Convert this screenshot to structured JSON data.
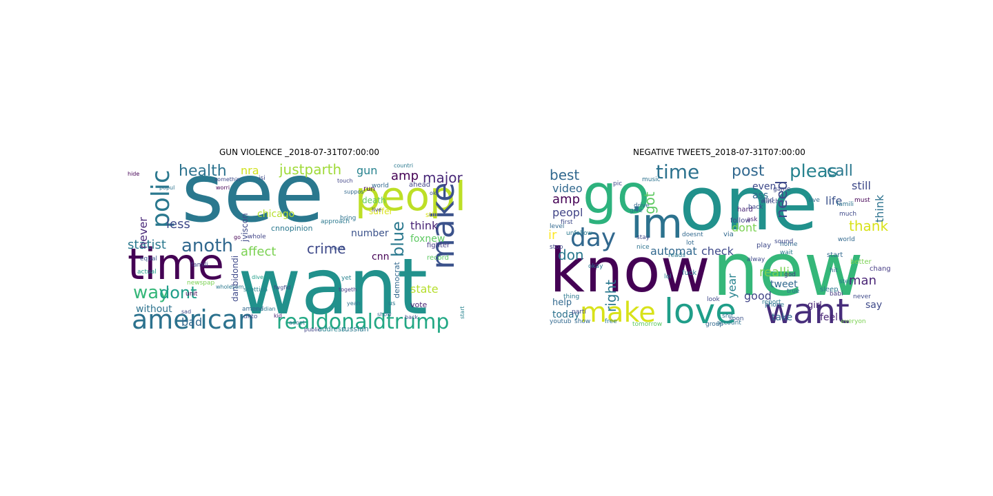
{
  "panels": [
    {
      "title": "GUN VIOLENCE _2018-07-31T07:00:00",
      "words": [
        {
          "text": "see",
          "color": "#2a788e"
        },
        {
          "text": "want",
          "color": "#21918c"
        },
        {
          "text": "peopl",
          "color": "#bddf26"
        },
        {
          "text": "time",
          "color": "#440154"
        },
        {
          "text": "american",
          "color": "#2c728e"
        },
        {
          "text": "realdonaldtrump",
          "color": "#22a884"
        },
        {
          "text": "make",
          "color": "#3b528b"
        },
        {
          "text": "polic",
          "color": "#2a788e"
        },
        {
          "text": "anoth",
          "color": "#31688e"
        },
        {
          "text": "health",
          "color": "#2c728e"
        },
        {
          "text": "justparth",
          "color": "#a0da39"
        },
        {
          "text": "major",
          "color": "#482878"
        },
        {
          "text": "blue",
          "color": "#2a788e"
        },
        {
          "text": "way",
          "color": "#35b779"
        },
        {
          "text": "dont",
          "color": "#1f9e89"
        },
        {
          "text": "crime",
          "color": "#3e4989"
        },
        {
          "text": "amp",
          "color": "#440154"
        },
        {
          "text": "nra",
          "color": "#d0e11c"
        },
        {
          "text": "gun",
          "color": "#26828e"
        },
        {
          "text": "think",
          "color": "#482475"
        },
        {
          "text": "statist",
          "color": "#2a788e"
        },
        {
          "text": "affect",
          "color": "#7ad151"
        },
        {
          "text": "less",
          "color": "#3e4989"
        },
        {
          "text": "never",
          "color": "#482878"
        },
        {
          "text": "state",
          "color": "#b5de2b"
        },
        {
          "text": "chicago",
          "color": "#b5de2b"
        },
        {
          "text": "foxnew",
          "color": "#5ec962"
        },
        {
          "text": "bad",
          "color": "#31688e"
        },
        {
          "text": "cnn",
          "color": "#440154"
        },
        {
          "text": "number",
          "color": "#3b528b"
        },
        {
          "text": "without",
          "color": "#2c728e"
        },
        {
          "text": "danbidondi",
          "color": "#3e4989"
        },
        {
          "text": "jviscon",
          "color": "#3e4989"
        },
        {
          "text": "cnnopinion",
          "color": "#2a788e"
        },
        {
          "text": "death",
          "color": "#5ec962"
        },
        {
          "text": "suffer",
          "color": "#d8e219"
        },
        {
          "text": "democrat",
          "color": "#31688e"
        },
        {
          "text": "vote",
          "color": "#482475"
        },
        {
          "text": "russian",
          "color": "#2a788e"
        },
        {
          "text": "address",
          "color": "#26828e"
        },
        {
          "text": "still",
          "color": "#d8e219"
        },
        {
          "text": "fighter",
          "color": "#443a83"
        },
        {
          "text": "run",
          "color": "#440154"
        },
        {
          "text": "record",
          "color": "#5ec962"
        },
        {
          "text": "world",
          "color": "#31688e"
        },
        {
          "text": "ahead",
          "color": "#414487"
        },
        {
          "text": "bring",
          "color": "#2c728e"
        },
        {
          "text": "approach",
          "color": "#2a788e"
        },
        {
          "text": "unit",
          "color": "#440154"
        },
        {
          "text": "scottish",
          "color": "#26828e"
        },
        {
          "text": "newspap",
          "color": "#7ad151"
        },
        {
          "text": "amend",
          "color": "#31688e"
        },
        {
          "text": "unto",
          "color": "#3e4989"
        },
        {
          "text": "whole",
          "color": "#414487"
        },
        {
          "text": "famili",
          "color": "#414487"
        },
        {
          "text": "equal",
          "color": "#3b528b"
        },
        {
          "text": "hide",
          "color": "#440154"
        },
        {
          "text": "actual",
          "color": "#1f9e89"
        },
        {
          "text": "touch",
          "color": "#414487"
        },
        {
          "text": "countri",
          "color": "#2a788e"
        },
        {
          "text": "suppos",
          "color": "#31688e"
        },
        {
          "text": "isi",
          "color": "#3e4989"
        },
        {
          "text": "read",
          "color": "#3b528b"
        },
        {
          "text": "us",
          "color": "#2a788e"
        },
        {
          "text": "yet",
          "color": "#26828e"
        },
        {
          "text": "togeth",
          "color": "#443a83"
        },
        {
          "text": "yeah",
          "color": "#2c728e"
        },
        {
          "text": "show",
          "color": "#31688e"
        },
        {
          "text": "back",
          "color": "#3e4989"
        },
        {
          "text": "start",
          "color": "#26828e"
        },
        {
          "text": "kid",
          "color": "#482475"
        },
        {
          "text": "public",
          "color": "#414487"
        },
        {
          "text": "adopt",
          "color": "#2c728e"
        },
        {
          "text": "sad",
          "color": "#3e4989"
        },
        {
          "text": "worri",
          "color": "#440154"
        },
        {
          "text": "canadian",
          "color": "#2a788e"
        },
        {
          "text": "diverti",
          "color": "#1f9e89"
        },
        {
          "text": "wholesom",
          "color": "#2a788e"
        },
        {
          "text": "fwgfid",
          "color": "#3e4989"
        },
        {
          "text": "go",
          "color": "#440154"
        },
        {
          "text": "ok",
          "color": "#3b528b"
        },
        {
          "text": "live",
          "color": "#443a83"
        },
        {
          "text": "somethin",
          "color": "#3e4989"
        },
        {
          "text": "popul",
          "color": "#2c728e"
        },
        {
          "text": "list",
          "color": "#3b528b"
        }
      ]
    },
    {
      "title": "NEGATIVE TWEETS_2018-07-31T07:00:00",
      "words": [
        {
          "text": "one",
          "color": "#21918c"
        },
        {
          "text": "new",
          "color": "#35b779"
        },
        {
          "text": "know",
          "color": "#440154"
        },
        {
          "text": "go",
          "color": "#2db27d"
        },
        {
          "text": "im",
          "color": "#2c728e"
        },
        {
          "text": "want",
          "color": "#472d7b"
        },
        {
          "text": "love",
          "color": "#1f9e89"
        },
        {
          "text": "make",
          "color": "#d8e219"
        },
        {
          "text": "day",
          "color": "#31688e"
        },
        {
          "text": "time",
          "color": "#2c728e"
        },
        {
          "text": "pleas",
          "color": "#26828e"
        },
        {
          "text": "post",
          "color": "#31688e"
        },
        {
          "text": "call",
          "color": "#2a788e"
        },
        {
          "text": "got",
          "color": "#5ec962"
        },
        {
          "text": "best",
          "color": "#31688e"
        },
        {
          "text": "amp",
          "color": "#440154"
        },
        {
          "text": "need",
          "color": "#3e4989"
        },
        {
          "text": "thank",
          "color": "#d8e219"
        },
        {
          "text": "don",
          "color": "#2a788e"
        },
        {
          "text": "right",
          "color": "#2a788e"
        },
        {
          "text": "video",
          "color": "#31688e"
        },
        {
          "text": "peopl",
          "color": "#414487"
        },
        {
          "text": "ir",
          "color": "#fde725"
        },
        {
          "text": "automat",
          "color": "#31688e"
        },
        {
          "text": "check",
          "color": "#3e4989"
        },
        {
          "text": "realli",
          "color": "#7ad151"
        },
        {
          "text": "tweet",
          "color": "#31688e"
        },
        {
          "text": "man",
          "color": "#482475"
        },
        {
          "text": "think",
          "color": "#2c728e"
        },
        {
          "text": "still",
          "color": "#3e4989"
        },
        {
          "text": "life",
          "color": "#3b528b"
        },
        {
          "text": "even",
          "color": "#3e4989"
        },
        {
          "text": "ass",
          "color": "#31688e"
        },
        {
          "text": "dont",
          "color": "#7ad151"
        },
        {
          "text": "year",
          "color": "#26828e"
        },
        {
          "text": "good",
          "color": "#414487"
        },
        {
          "text": "today",
          "color": "#2c728e"
        },
        {
          "text": "help",
          "color": "#31688e"
        },
        {
          "text": "say",
          "color": "#3e4989"
        },
        {
          "text": "feel",
          "color": "#482475"
        },
        {
          "text": "take",
          "color": "#31688e"
        },
        {
          "text": "girl",
          "color": "#482475"
        },
        {
          "text": "follow",
          "color": "#414487"
        },
        {
          "text": "unfollow",
          "color": "#2a788e"
        },
        {
          "text": "first",
          "color": "#3e4989"
        },
        {
          "text": "via",
          "color": "#31688e"
        },
        {
          "text": "fuck",
          "color": "#2c728e"
        },
        {
          "text": "play",
          "color": "#3e4989"
        },
        {
          "text": "start",
          "color": "#31688e"
        },
        {
          "text": "chang",
          "color": "#443a83"
        },
        {
          "text": "sleep",
          "color": "#2a788e"
        },
        {
          "text": "phone",
          "color": "#2c728e"
        },
        {
          "text": "soon",
          "color": "#3b528b"
        },
        {
          "text": "group",
          "color": "#31688e"
        },
        {
          "text": "shit",
          "color": "#2c728e"
        },
        {
          "text": "look",
          "color": "#3e4989"
        },
        {
          "text": "account",
          "color": "#2c728e"
        },
        {
          "text": "tomorrow",
          "color": "#5ec962"
        },
        {
          "text": "free",
          "color": "#2a788e"
        },
        {
          "text": "youtub",
          "color": "#31688e"
        },
        {
          "text": "wait",
          "color": "#2a788e"
        },
        {
          "text": "game",
          "color": "#3e4989"
        },
        {
          "text": "hard",
          "color": "#482475"
        },
        {
          "text": "watch",
          "color": "#3e4989"
        },
        {
          "text": "everyon",
          "color": "#7ad151"
        },
        {
          "text": "babi",
          "color": "#443a83"
        },
        {
          "text": "home",
          "color": "#31688e"
        },
        {
          "text": "give",
          "color": "#2a788e"
        },
        {
          "text": "stay",
          "color": "#3e4989"
        },
        {
          "text": "nice",
          "color": "#2c728e"
        },
        {
          "text": "lol",
          "color": "#26828e"
        },
        {
          "text": "level",
          "color": "#31688e"
        },
        {
          "text": "stop",
          "color": "#3e4989"
        },
        {
          "text": "god",
          "color": "#443a83"
        },
        {
          "text": "hit",
          "color": "#31688e"
        },
        {
          "text": "step",
          "color": "#2a788e"
        },
        {
          "text": "back",
          "color": "#3e4989"
        },
        {
          "text": "ask",
          "color": "#482475"
        },
        {
          "text": "live",
          "color": "#31688e"
        },
        {
          "text": "must",
          "color": "#440154"
        },
        {
          "text": "much",
          "color": "#3e4989"
        },
        {
          "text": "famili",
          "color": "#2c728e"
        },
        {
          "text": "world",
          "color": "#31688e"
        },
        {
          "text": "sound",
          "color": "#3e4989"
        },
        {
          "text": "thing",
          "color": "#2a788e"
        },
        {
          "text": "parti",
          "color": "#3e4989"
        },
        {
          "text": "show",
          "color": "#31688e"
        },
        {
          "text": "end",
          "color": "#3e4989"
        },
        {
          "text": "okay",
          "color": "#2a788e"
        },
        {
          "text": "drive",
          "color": "#31688e"
        },
        {
          "text": "true",
          "color": "#2c728e"
        },
        {
          "text": "better",
          "color": "#7ad151"
        },
        {
          "text": "never",
          "color": "#3e4989"
        },
        {
          "text": "lot",
          "color": "#31688e"
        },
        {
          "text": "alway",
          "color": "#3e4989"
        },
        {
          "text": "reads",
          "color": "#2a788e"
        },
        {
          "text": "music",
          "color": "#2c728e"
        },
        {
          "text": "pic",
          "color": "#3e4989"
        },
        {
          "text": "doesnt",
          "color": "#31688e"
        },
        {
          "text": "report",
          "color": "#2a788e"
        }
      ]
    }
  ]
}
